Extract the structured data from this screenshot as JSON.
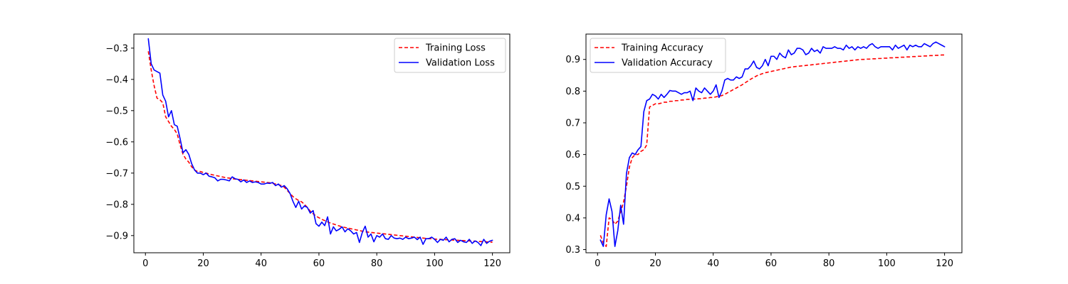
{
  "chart_data": [
    {
      "type": "line",
      "xlim": [
        -4,
        126
      ],
      "ylim": [
        -0.955,
        -0.255
      ],
      "xticks": [
        0,
        20,
        40,
        60,
        80,
        100,
        120
      ],
      "yticks": [
        -0.9,
        -0.8,
        -0.7,
        -0.6,
        -0.5,
        -0.4,
        -0.3
      ],
      "grid": false,
      "legend_position": "top-right",
      "x": [
        1,
        2,
        3,
        4,
        5,
        6,
        7,
        8,
        9,
        10,
        11,
        12,
        13,
        14,
        15,
        16,
        17,
        18,
        19,
        20,
        21,
        22,
        23,
        24,
        25,
        26,
        27,
        28,
        29,
        30,
        31,
        32,
        33,
        34,
        35,
        36,
        37,
        38,
        39,
        40,
        41,
        42,
        43,
        44,
        45,
        46,
        47,
        48,
        49,
        50,
        51,
        52,
        53,
        54,
        55,
        56,
        57,
        58,
        59,
        60,
        61,
        62,
        63,
        64,
        65,
        66,
        67,
        68,
        69,
        70,
        71,
        72,
        73,
        74,
        75,
        76,
        77,
        78,
        79,
        80,
        81,
        82,
        83,
        84,
        85,
        86,
        87,
        88,
        89,
        90,
        91,
        92,
        93,
        94,
        95,
        96,
        97,
        98,
        99,
        100,
        101,
        102,
        103,
        104,
        105,
        106,
        107,
        108,
        109,
        110,
        111,
        112,
        113,
        114,
        115,
        116,
        117,
        118,
        119,
        120
      ],
      "series": [
        {
          "name": "Training Loss",
          "color": "#ff0000",
          "dash": "dashed",
          "values": [
            -0.31,
            -0.37,
            -0.42,
            -0.46,
            -0.465,
            -0.475,
            -0.52,
            -0.535,
            -0.55,
            -0.56,
            -0.575,
            -0.61,
            -0.64,
            -0.655,
            -0.665,
            -0.68,
            -0.69,
            -0.695,
            -0.695,
            -0.698,
            -0.7,
            -0.703,
            -0.705,
            -0.707,
            -0.709,
            -0.711,
            -0.713,
            -0.715,
            -0.716,
            -0.718,
            -0.719,
            -0.72,
            -0.721,
            -0.722,
            -0.723,
            -0.724,
            -0.725,
            -0.726,
            -0.727,
            -0.728,
            -0.729,
            -0.73,
            -0.731,
            -0.733,
            -0.735,
            -0.737,
            -0.74,
            -0.745,
            -0.755,
            -0.765,
            -0.775,
            -0.782,
            -0.788,
            -0.792,
            -0.8,
            -0.81,
            -0.822,
            -0.83,
            -0.838,
            -0.843,
            -0.848,
            -0.852,
            -0.856,
            -0.86,
            -0.863,
            -0.866,
            -0.869,
            -0.872,
            -0.874,
            -0.876,
            -0.878,
            -0.88,
            -0.882,
            -0.884,
            -0.886,
            -0.888,
            -0.889,
            -0.89,
            -0.891,
            -0.892,
            -0.893,
            -0.894,
            -0.895,
            -0.896,
            -0.897,
            -0.898,
            -0.899,
            -0.9,
            -0.901,
            -0.902,
            -0.903,
            -0.904,
            -0.905,
            -0.906,
            -0.907,
            -0.908,
            -0.909,
            -0.91,
            -0.91,
            -0.911,
            -0.912,
            -0.912,
            -0.913,
            -0.913,
            -0.914,
            -0.914,
            -0.915,
            -0.915,
            -0.916,
            -0.916,
            -0.917,
            -0.917,
            -0.918,
            -0.918,
            -0.919,
            -0.919,
            -0.92,
            -0.92,
            -0.921,
            -0.921
          ]
        },
        {
          "name": "Validation Loss",
          "color": "#0000ff",
          "dash": "solid",
          "values": [
            -0.27,
            -0.35,
            -0.37,
            -0.375,
            -0.38,
            -0.45,
            -0.47,
            -0.52,
            -0.5,
            -0.545,
            -0.55,
            -0.59,
            -0.635,
            -0.625,
            -0.64,
            -0.67,
            -0.69,
            -0.7,
            -0.7,
            -0.705,
            -0.7,
            -0.71,
            -0.712,
            -0.715,
            -0.725,
            -0.72,
            -0.72,
            -0.722,
            -0.725,
            -0.712,
            -0.718,
            -0.72,
            -0.728,
            -0.722,
            -0.73,
            -0.725,
            -0.73,
            -0.728,
            -0.73,
            -0.735,
            -0.735,
            -0.732,
            -0.733,
            -0.73,
            -0.74,
            -0.735,
            -0.745,
            -0.74,
            -0.75,
            -0.765,
            -0.79,
            -0.81,
            -0.79,
            -0.815,
            -0.805,
            -0.81,
            -0.828,
            -0.82,
            -0.862,
            -0.87,
            -0.857,
            -0.868,
            -0.84,
            -0.895,
            -0.872,
            -0.885,
            -0.88,
            -0.872,
            -0.888,
            -0.878,
            -0.885,
            -0.895,
            -0.89,
            -0.922,
            -0.89,
            -0.87,
            -0.905,
            -0.895,
            -0.92,
            -0.9,
            -0.905,
            -0.895,
            -0.91,
            -0.912,
            -0.9,
            -0.908,
            -0.91,
            -0.908,
            -0.912,
            -0.905,
            -0.91,
            -0.908,
            -0.905,
            -0.913,
            -0.905,
            -0.928,
            -0.91,
            -0.91,
            -0.905,
            -0.912,
            -0.922,
            -0.912,
            -0.915,
            -0.905,
            -0.92,
            -0.912,
            -0.91,
            -0.922,
            -0.915,
            -0.92,
            -0.922,
            -0.912,
            -0.925,
            -0.917,
            -0.922,
            -0.932,
            -0.912,
            -0.925,
            -0.918,
            -0.915
          ]
        }
      ]
    },
    {
      "type": "line",
      "xlim": [
        -4,
        126
      ],
      "ylim": [
        0.29,
        0.98
      ],
      "xticks": [
        0,
        20,
        40,
        60,
        80,
        100,
        120
      ],
      "yticks": [
        0.3,
        0.4,
        0.5,
        0.6,
        0.7,
        0.8,
        0.9
      ],
      "grid": false,
      "legend_position": "top-left",
      "x": [
        1,
        2,
        3,
        4,
        5,
        6,
        7,
        8,
        9,
        10,
        11,
        12,
        13,
        14,
        15,
        16,
        17,
        18,
        19,
        20,
        21,
        22,
        23,
        24,
        25,
        26,
        27,
        28,
        29,
        30,
        31,
        32,
        33,
        34,
        35,
        36,
        37,
        38,
        39,
        40,
        41,
        42,
        43,
        44,
        45,
        46,
        47,
        48,
        49,
        50,
        51,
        52,
        53,
        54,
        55,
        56,
        57,
        58,
        59,
        60,
        61,
        62,
        63,
        64,
        65,
        66,
        67,
        68,
        69,
        70,
        71,
        72,
        73,
        74,
        75,
        76,
        77,
        78,
        79,
        80,
        81,
        82,
        83,
        84,
        85,
        86,
        87,
        88,
        89,
        90,
        91,
        92,
        93,
        94,
        95,
        96,
        97,
        98,
        99,
        100,
        101,
        102,
        103,
        104,
        105,
        106,
        107,
        108,
        109,
        110,
        111,
        112,
        113,
        114,
        115,
        116,
        117,
        118,
        119,
        120
      ],
      "series": [
        {
          "name": "Training Accuracy",
          "color": "#ff0000",
          "dash": "dashed",
          "values": [
            0.345,
            0.32,
            0.31,
            0.4,
            0.395,
            0.38,
            0.39,
            0.42,
            0.45,
            0.5,
            0.56,
            0.59,
            0.6,
            0.6,
            0.61,
            0.615,
            0.63,
            0.75,
            0.755,
            0.76,
            0.76,
            0.762,
            0.765,
            0.765,
            0.768,
            0.768,
            0.77,
            0.77,
            0.772,
            0.772,
            0.774,
            0.774,
            0.775,
            0.775,
            0.776,
            0.776,
            0.778,
            0.778,
            0.78,
            0.78,
            0.782,
            0.784,
            0.786,
            0.79,
            0.795,
            0.8,
            0.805,
            0.81,
            0.815,
            0.82,
            0.826,
            0.832,
            0.838,
            0.843,
            0.848,
            0.852,
            0.855,
            0.858,
            0.86,
            0.862,
            0.864,
            0.866,
            0.868,
            0.87,
            0.872,
            0.874,
            0.876,
            0.877,
            0.878,
            0.879,
            0.88,
            0.881,
            0.882,
            0.883,
            0.884,
            0.885,
            0.886,
            0.887,
            0.888,
            0.889,
            0.89,
            0.891,
            0.892,
            0.893,
            0.894,
            0.895,
            0.896,
            0.897,
            0.898,
            0.899,
            0.9,
            0.9,
            0.901,
            0.901,
            0.902,
            0.902,
            0.903,
            0.903,
            0.904,
            0.904,
            0.905,
            0.905,
            0.906,
            0.906,
            0.907,
            0.907,
            0.908,
            0.908,
            0.909,
            0.909,
            0.91,
            0.91,
            0.911,
            0.911,
            0.912,
            0.912,
            0.913,
            0.913,
            0.914,
            0.914
          ]
        },
        {
          "name": "Validation Accuracy",
          "color": "#0000ff",
          "dash": "solid",
          "values": [
            0.33,
            0.31,
            0.41,
            0.46,
            0.42,
            0.31,
            0.36,
            0.44,
            0.38,
            0.54,
            0.59,
            0.605,
            0.6,
            0.615,
            0.625,
            0.735,
            0.77,
            0.775,
            0.79,
            0.785,
            0.775,
            0.79,
            0.78,
            0.79,
            0.802,
            0.8,
            0.8,
            0.795,
            0.79,
            0.795,
            0.795,
            0.8,
            0.77,
            0.81,
            0.8,
            0.795,
            0.81,
            0.8,
            0.79,
            0.8,
            0.82,
            0.78,
            0.8,
            0.835,
            0.84,
            0.835,
            0.835,
            0.845,
            0.84,
            0.845,
            0.87,
            0.87,
            0.88,
            0.895,
            0.875,
            0.87,
            0.88,
            0.9,
            0.88,
            0.91,
            0.91,
            0.9,
            0.92,
            0.91,
            0.905,
            0.93,
            0.915,
            0.92,
            0.935,
            0.935,
            0.93,
            0.915,
            0.92,
            0.935,
            0.925,
            0.93,
            0.92,
            0.94,
            0.935,
            0.935,
            0.935,
            0.94,
            0.935,
            0.935,
            0.93,
            0.945,
            0.935,
            0.94,
            0.93,
            0.94,
            0.935,
            0.94,
            0.935,
            0.945,
            0.95,
            0.94,
            0.935,
            0.94,
            0.94,
            0.94,
            0.94,
            0.93,
            0.945,
            0.935,
            0.94,
            0.945,
            0.93,
            0.945,
            0.94,
            0.945,
            0.94,
            0.94,
            0.95,
            0.945,
            0.94,
            0.95,
            0.955,
            0.95,
            0.945,
            0.94
          ]
        }
      ]
    }
  ]
}
